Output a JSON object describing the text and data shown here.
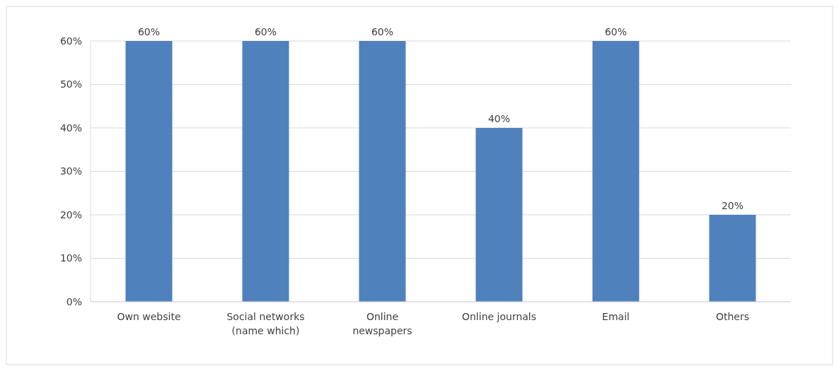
{
  "chart_data": {
    "type": "bar",
    "categories": [
      "Own website",
      "Social networks (name which)",
      "Online newspapers",
      "Online journals",
      "Email",
      "Others"
    ],
    "values": [
      60,
      60,
      60,
      40,
      60,
      20
    ],
    "color": "#4f81bd",
    "ylim": [
      0,
      60
    ],
    "yticks": [
      {
        "value": 0,
        "label": "0%"
      },
      {
        "value": 10,
        "label": "10%"
      },
      {
        "value": 20,
        "label": "20%"
      },
      {
        "value": 30,
        "label": "30%"
      },
      {
        "value": 40,
        "label": "40%"
      },
      {
        "value": 50,
        "label": "50%"
      },
      {
        "value": 60,
        "label": "60%"
      }
    ],
    "value_labels": [
      "60%",
      "60%",
      "60%",
      "40%",
      "60%",
      "20%"
    ],
    "grid": "y"
  }
}
